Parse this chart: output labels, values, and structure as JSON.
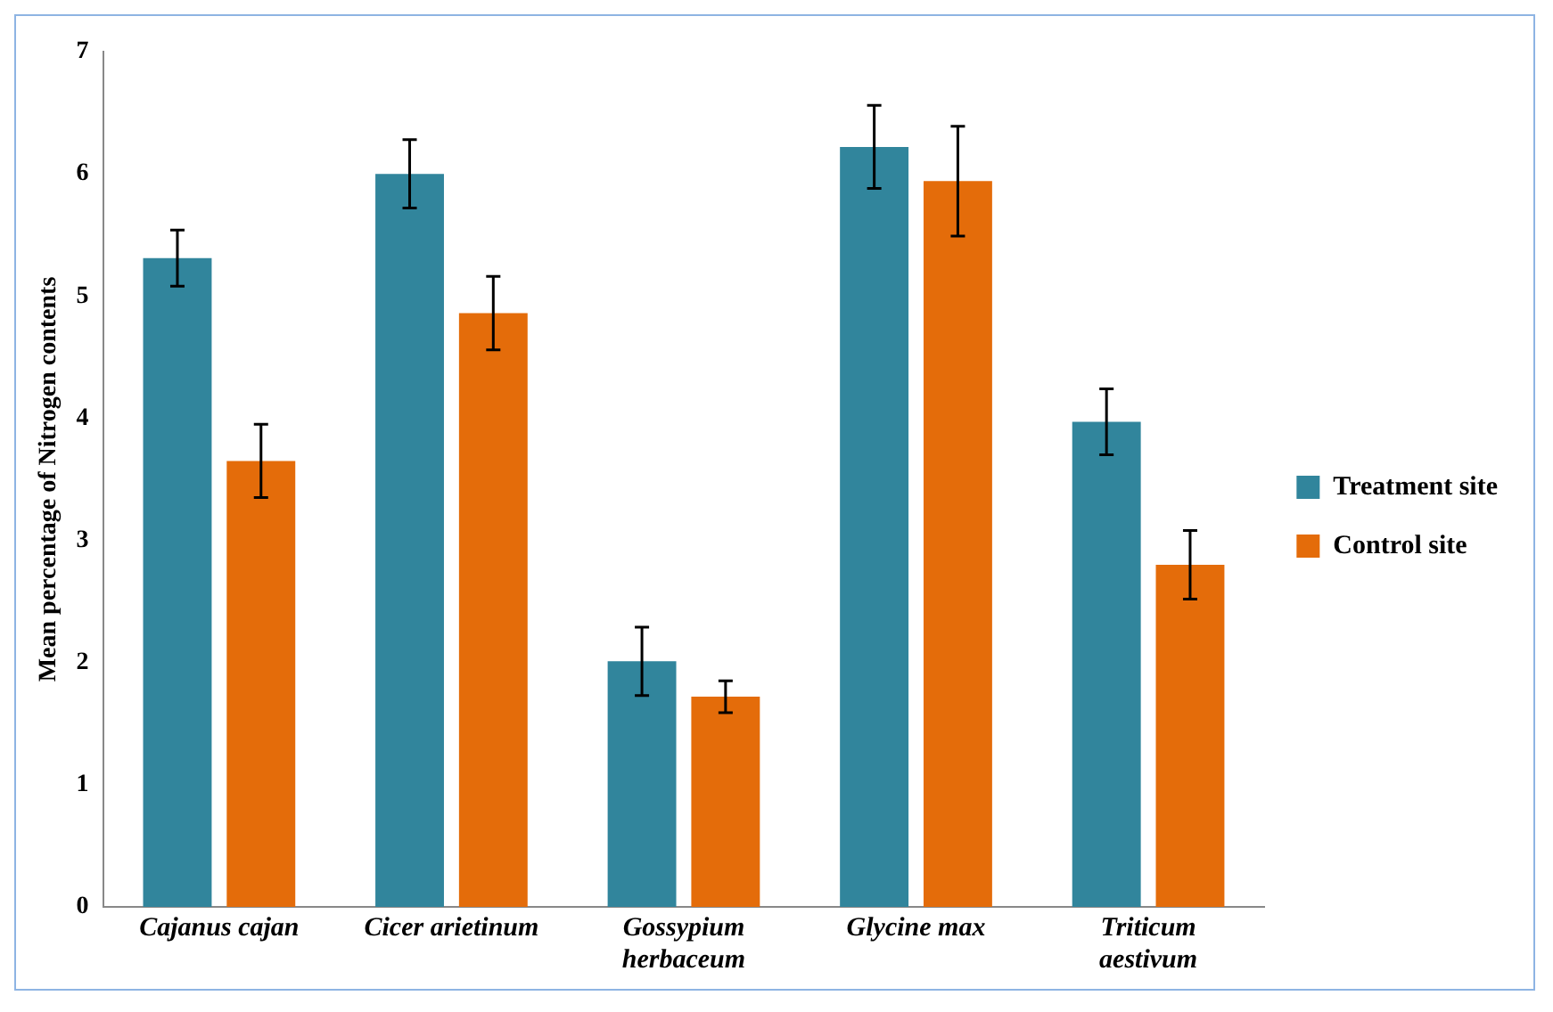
{
  "chart_data": {
    "type": "bar",
    "ylabel": "Mean percentage of Nitrogen contents",
    "categories": [
      "Cajanus cajan",
      "Cicer arietinum",
      "Gossypium herbaceum",
      "Glycine max",
      "Triticum aestivum"
    ],
    "series": [
      {
        "name": "Treatment site",
        "color": "#31859c",
        "values": [
          5.31,
          6.0,
          2.01,
          6.22,
          3.97
        ],
        "errors": [
          0.23,
          0.28,
          0.28,
          0.34,
          0.27
        ]
      },
      {
        "name": "Control site",
        "color": "#e46c0a",
        "values": [
          3.65,
          4.86,
          1.72,
          5.94,
          2.8
        ],
        "errors": [
          0.3,
          0.3,
          0.13,
          0.45,
          0.28
        ]
      }
    ],
    "ylim": [
      0,
      7
    ],
    "yticks": [
      0,
      1,
      2,
      3,
      4,
      5,
      6,
      7
    ],
    "legend": "right",
    "grid": false
  }
}
